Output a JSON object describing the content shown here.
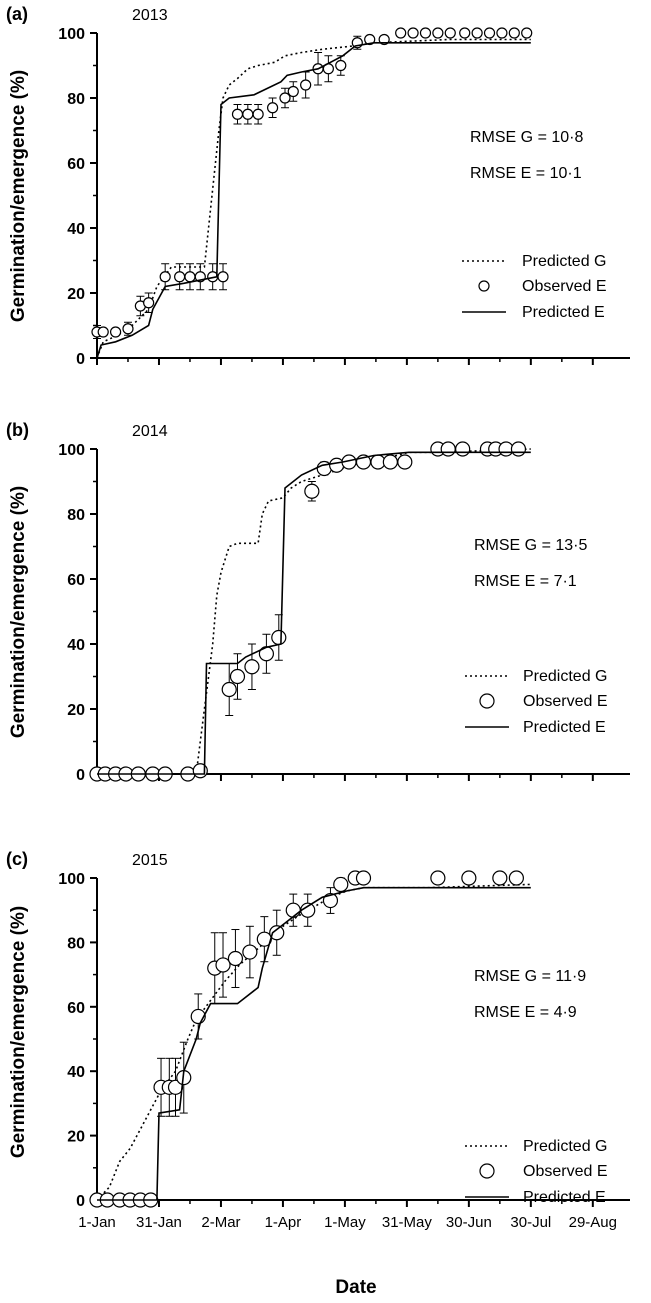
{
  "figure": {
    "ylabel": "Germination/emergence (%)",
    "xlabel": "Date",
    "xtick_labels": [
      "1-Jan",
      "31-Jan",
      "2-Mar",
      "1-Apr",
      "1-May",
      "31-May",
      "30-Jun",
      "30-Jul",
      "29-Aug"
    ],
    "ytick_labels": [
      "0",
      "20",
      "40",
      "60",
      "80",
      "100"
    ]
  },
  "chart_data": [
    {
      "type": "line",
      "panel": "(a)",
      "title": "2013",
      "xlim": [
        "2013-01-01",
        "2013-09-16"
      ],
      "ylim": [
        0,
        100
      ],
      "xlabel": "",
      "ylabel": "Germination/emergence (%)",
      "annotations": [
        "RMSE G = 10·8",
        "RMSE E = 10·1"
      ],
      "legend": [
        "Predicted G",
        "Observed E",
        "Predicted E"
      ],
      "legend_placement": "right",
      "series": [
        {
          "name": "Predicted G",
          "style": "dotted",
          "x": [
            "2013-01-01",
            "2013-01-04",
            "2013-01-11",
            "2013-01-18",
            "2013-01-26",
            "2013-01-30",
            "2013-02-06",
            "2013-02-22",
            "2013-03-01",
            "2013-03-03",
            "2013-03-06",
            "2013-03-10",
            "2013-03-15",
            "2013-03-20",
            "2013-03-28",
            "2013-04-02",
            "2013-04-10",
            "2013-04-20",
            "2013-05-05",
            "2013-05-15",
            "2013-06-20",
            "2013-07-30"
          ],
          "y": [
            0,
            5,
            7,
            10,
            15,
            22,
            28,
            28,
            70,
            80,
            84,
            86,
            89,
            90,
            91,
            93,
            94,
            95,
            96,
            97,
            98,
            98
          ]
        },
        {
          "name": "Observed E",
          "style": "markers",
          "x": [
            "2013-01-01",
            "2013-01-04",
            "2013-01-10",
            "2013-01-16",
            "2013-01-22",
            "2013-01-26",
            "2013-02-03",
            "2013-02-10",
            "2013-02-15",
            "2013-02-20",
            "2013-02-26",
            "2013-03-03",
            "2013-03-10",
            "2013-03-15",
            "2013-03-20",
            "2013-03-27",
            "2013-04-02",
            "2013-04-06",
            "2013-04-12",
            "2013-04-18",
            "2013-04-23",
            "2013-04-29",
            "2013-05-07",
            "2013-05-13",
            "2013-05-20",
            "2013-05-28",
            "2013-06-03",
            "2013-06-09",
            "2013-06-15",
            "2013-06-21",
            "2013-06-28",
            "2013-07-04",
            "2013-07-10",
            "2013-07-16",
            "2013-07-22",
            "2013-07-28"
          ],
          "y": [
            8,
            8,
            8,
            9,
            16,
            17,
            25,
            25,
            25,
            25,
            25,
            25,
            75,
            75,
            75,
            77,
            80,
            82,
            84,
            89,
            89,
            90,
            97,
            98,
            98,
            100,
            100,
            100,
            100,
            100,
            100,
            100,
            100,
            100,
            100,
            100
          ],
          "error": [
            2,
            1,
            1,
            2,
            3,
            3,
            4,
            4,
            4,
            4,
            4,
            4,
            3,
            3,
            3,
            3,
            3,
            3,
            4,
            5,
            4,
            3,
            2,
            1,
            1,
            1,
            1,
            1,
            1,
            1,
            1,
            1,
            1,
            1,
            1,
            1
          ]
        },
        {
          "name": "Predicted E",
          "style": "solid",
          "x": [
            "2013-01-01",
            "2013-01-03",
            "2013-01-10",
            "2013-01-18",
            "2013-01-26",
            "2013-01-28",
            "2013-02-03",
            "2013-02-12",
            "2013-02-28",
            "2013-03-02",
            "2013-03-06",
            "2013-03-18",
            "2013-03-31",
            "2013-04-03",
            "2013-04-10",
            "2013-04-18",
            "2013-04-30",
            "2013-05-06",
            "2013-05-15",
            "2013-07-30"
          ],
          "y": [
            0,
            4,
            5,
            7,
            10,
            15,
            22,
            23,
            25,
            78,
            80,
            81,
            85,
            87,
            88,
            89,
            93,
            96,
            97,
            97
          ]
        }
      ]
    },
    {
      "type": "line",
      "panel": "(b)",
      "title": "2014",
      "xlim": [
        "2014-01-01",
        "2014-09-16"
      ],
      "ylim": [
        0,
        100
      ],
      "xlabel": "",
      "ylabel": "Germination/emergence (%)",
      "annotations": [
        "RMSE G = 13·5",
        "RMSE E = 7·1"
      ],
      "legend": [
        "Predicted G",
        "Observed E",
        "Predicted E"
      ],
      "legend_placement": "bottom-right",
      "series": [
        {
          "name": "Predicted G",
          "style": "dotted",
          "x": [
            "2014-01-01",
            "2014-02-18",
            "2014-02-20",
            "2014-02-22",
            "2014-02-24",
            "2014-02-26",
            "2014-02-28",
            "2014-03-02",
            "2014-03-04",
            "2014-03-06",
            "2014-03-10",
            "2014-03-20",
            "2014-03-22",
            "2014-03-25",
            "2014-04-01",
            "2014-04-05",
            "2014-04-10",
            "2014-04-20",
            "2014-04-30",
            "2014-05-10",
            "2014-05-20",
            "2014-06-01",
            "2014-06-15",
            "2014-07-30"
          ],
          "y": [
            0,
            0,
            10,
            20,
            30,
            40,
            55,
            62,
            66,
            70,
            71,
            71,
            80,
            84,
            85,
            88,
            90,
            92,
            94,
            96,
            97,
            99,
            99,
            100
          ]
        },
        {
          "name": "Observed E",
          "style": "markers",
          "x": [
            "2014-01-01",
            "2014-01-05",
            "2014-01-10",
            "2014-01-15",
            "2014-01-21",
            "2014-01-28",
            "2014-02-03",
            "2014-02-14",
            "2014-02-20",
            "2014-03-06",
            "2014-03-10",
            "2014-03-17",
            "2014-03-24",
            "2014-03-30",
            "2014-04-15",
            "2014-04-21",
            "2014-04-27",
            "2014-05-03",
            "2014-05-10",
            "2014-05-17",
            "2014-05-23",
            "2014-05-30",
            "2014-06-15",
            "2014-06-20",
            "2014-06-27",
            "2014-07-09",
            "2014-07-13",
            "2014-07-18",
            "2014-07-24"
          ],
          "y": [
            0,
            0,
            0,
            0,
            0,
            0,
            0,
            0,
            1,
            26,
            30,
            33,
            37,
            42,
            87,
            94,
            95,
            96,
            96,
            96,
            96,
            96,
            100,
            100,
            100,
            100,
            100,
            100,
            100
          ],
          "error": [
            0,
            0,
            0,
            0,
            0,
            0,
            0,
            0,
            0,
            8,
            7,
            7,
            6,
            7,
            3,
            2,
            1,
            1,
            1,
            1,
            1,
            1,
            0,
            0,
            0,
            0,
            0,
            0,
            0
          ]
        },
        {
          "name": "Predicted E",
          "style": "solid",
          "x": [
            "2014-01-01",
            "2014-02-22",
            "2014-02-23",
            "2014-03-10",
            "2014-03-14",
            "2014-03-24",
            "2014-03-31",
            "2014-04-02",
            "2014-04-10",
            "2014-04-20",
            "2014-04-30",
            "2014-05-15",
            "2014-06-01",
            "2014-07-30"
          ],
          "y": [
            0,
            0,
            34,
            34,
            36,
            39,
            40,
            88,
            92,
            95,
            96,
            98,
            99,
            99
          ]
        }
      ]
    },
    {
      "type": "line",
      "panel": "(c)",
      "title": "2015",
      "xlim": [
        "2015-01-01",
        "2015-09-16"
      ],
      "ylim": [
        0,
        100
      ],
      "xlabel": "Date",
      "ylabel": "Germination/emergence (%)",
      "annotations": [
        "RMSE G = 11·9",
        "RMSE E = 4·9"
      ],
      "legend": [
        "Predicted G",
        "Observed E",
        "Predicted E"
      ],
      "legend_placement": "bottom-right",
      "series": [
        {
          "name": "Predicted G",
          "style": "dotted",
          "x": [
            "2015-01-01",
            "2015-01-07",
            "2015-01-12",
            "2015-01-17",
            "2015-01-22",
            "2015-01-27",
            "2015-02-01",
            "2015-02-08",
            "2015-02-14",
            "2015-02-18",
            "2015-02-25",
            "2015-03-04",
            "2015-03-11",
            "2015-03-18",
            "2015-03-25",
            "2015-04-01",
            "2015-04-08",
            "2015-04-16",
            "2015-04-24",
            "2015-05-02",
            "2015-05-10",
            "2015-06-10",
            "2015-07-30"
          ],
          "y": [
            0,
            4,
            12,
            16,
            22,
            28,
            34,
            40,
            50,
            56,
            62,
            68,
            73,
            77,
            81,
            85,
            88,
            91,
            94,
            96,
            97,
            97,
            98
          ]
        },
        {
          "name": "Observed E",
          "style": "markers",
          "x": [
            "2015-01-01",
            "2015-01-06",
            "2015-01-12",
            "2015-01-17",
            "2015-01-22",
            "2015-01-27",
            "2015-02-01",
            "2015-02-05",
            "2015-02-08",
            "2015-02-12",
            "2015-02-19",
            "2015-02-27",
            "2015-03-03",
            "2015-03-09",
            "2015-03-16",
            "2015-03-23",
            "2015-03-29",
            "2015-04-06",
            "2015-04-13",
            "2015-04-24",
            "2015-04-29",
            "2015-05-06",
            "2015-05-10",
            "2015-06-15",
            "2015-06-30",
            "2015-07-15",
            "2015-07-23"
          ],
          "y": [
            0,
            0,
            0,
            0,
            0,
            0,
            35,
            35,
            35,
            38,
            57,
            72,
            73,
            75,
            77,
            81,
            83,
            90,
            90,
            93,
            98,
            100,
            100,
            100,
            100,
            100,
            100
          ],
          "error": [
            0,
            0,
            0,
            0,
            0,
            0,
            9,
            9,
            9,
            11,
            7,
            11,
            10,
            9,
            8,
            7,
            7,
            5,
            5,
            4,
            2,
            1,
            1,
            0,
            0,
            0,
            0
          ]
        },
        {
          "name": "Predicted E",
          "style": "solid",
          "x": [
            "2015-01-01",
            "2015-01-30",
            "2015-01-31",
            "2015-02-10",
            "2015-02-12",
            "2015-02-18",
            "2015-02-20",
            "2015-02-25",
            "2015-03-10",
            "2015-03-20",
            "2015-03-22",
            "2015-03-27",
            "2015-04-02",
            "2015-04-10",
            "2015-04-20",
            "2015-05-02",
            "2015-05-10",
            "2015-07-30"
          ],
          "y": [
            0,
            0,
            27,
            28,
            40,
            50,
            55,
            61,
            61,
            66,
            72,
            83,
            86,
            90,
            94,
            96,
            97,
            97
          ]
        }
      ]
    }
  ]
}
